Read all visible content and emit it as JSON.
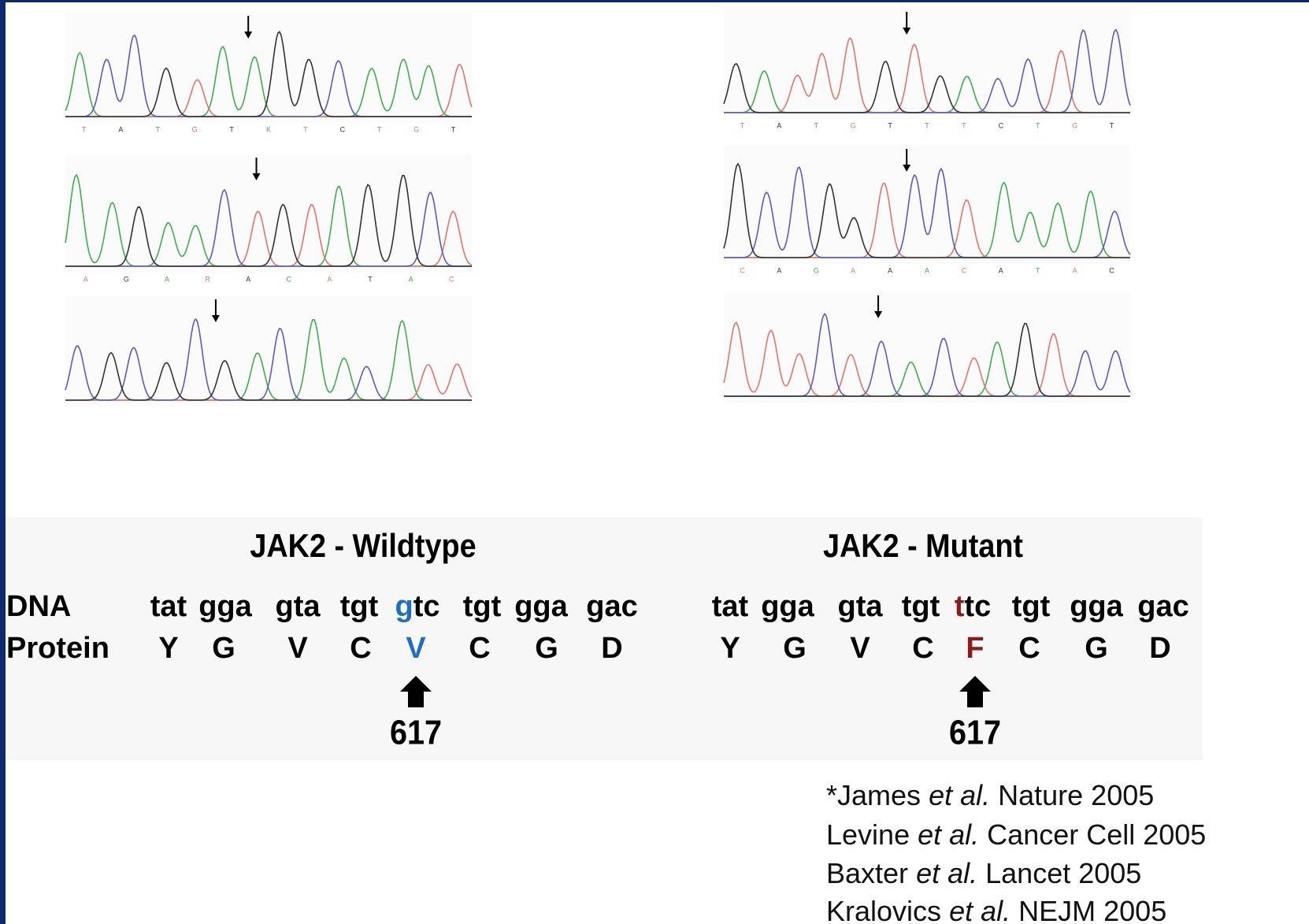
{
  "panels": [
    {
      "title": "JAK2 - Wildtype",
      "base_rows": [
        [
          "T",
          "A",
          "T",
          "G",
          "T",
          "K",
          "T",
          "C",
          "T",
          "G",
          "T"
        ],
        [
          "A",
          "G",
          "A",
          "R",
          "A",
          "C",
          "A",
          "T",
          "A",
          "C"
        ]
      ],
      "dna": [
        "tat",
        "gga",
        "gta",
        "tgt",
        {
          "first": "g",
          "rest": "tc"
        },
        "tgt",
        "gga",
        "gac"
      ],
      "protein": [
        "Y",
        "G",
        "V",
        "C",
        "V",
        "C",
        "G",
        "D"
      ],
      "highlight_color": "#1f6fbf",
      "position": "617"
    },
    {
      "title": "JAK2 - Mutant",
      "base_rows": [
        [
          "T",
          "A",
          "T",
          "G",
          "T",
          "T",
          "T",
          "C",
          "T",
          "G",
          "T"
        ],
        [
          "C",
          "A",
          "G",
          "A",
          "A",
          "A",
          "C",
          "A",
          "T",
          "A",
          "C"
        ]
      ],
      "dna": [
        "tat",
        "gga",
        "gta",
        "tgt",
        {
          "first": "t",
          "rest": "tc"
        },
        "tgt",
        "gga",
        "gac"
      ],
      "protein": [
        "Y",
        "G",
        "V",
        "C",
        "F",
        "C",
        "G",
        "D"
      ],
      "highlight_color": "#8b1a1a",
      "position": "617"
    }
  ],
  "row_labels": {
    "dna": "DNA",
    "protein": "Protein"
  },
  "references": [
    {
      "author": "*James",
      "etal": "et al.",
      "source": "Nature 2005"
    },
    {
      "author": "Levine",
      "etal": "et al.",
      "source": "Cancer Cell 2005"
    },
    {
      "author": "Baxter",
      "etal": "et al.",
      "source": "Lancet 2005"
    },
    {
      "author": "Kralovics",
      "etal": "et al.",
      "source": "NEJM 2005"
    }
  ]
}
